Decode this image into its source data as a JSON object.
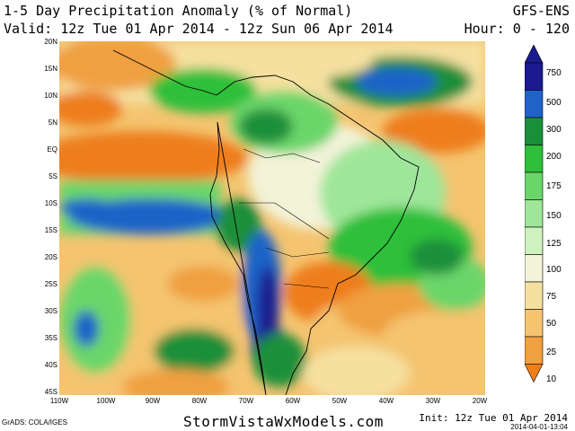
{
  "header": {
    "title": "1-5 Day Precipitation Anomaly (% of Normal)",
    "valid": "Valid: 12z Tue 01 Apr 2014 - 12z Sun 06 Apr 2014",
    "model": "GFS-ENS",
    "hour": "Hour: 0 - 120"
  },
  "map": {
    "lat_labels": [
      "20N",
      "15N",
      "10N",
      "5N",
      "EQ",
      "5S",
      "10S",
      "15S",
      "20S",
      "25S",
      "30S",
      "35S",
      "40S",
      "45S"
    ],
    "lon_labels": [
      "110W",
      "100W",
      "90W",
      "80W",
      "70W",
      "60W",
      "50W",
      "40W",
      "30W",
      "20W"
    ]
  },
  "colorbar": {
    "labels": [
      "750",
      "500",
      "300",
      "200",
      "175",
      "150",
      "125",
      "100",
      "75",
      "50",
      "25",
      "10"
    ],
    "colors": [
      "#1b1b8f",
      "#1f63c8",
      "#1a8f3a",
      "#2fbf3a",
      "#6ad66a",
      "#9fe69a",
      "#cdf2c0",
      "#f3f3d8",
      "#f6e0a0",
      "#f4c470",
      "#f0a040",
      "#ee7e1a"
    ]
  },
  "footer": {
    "grads": "GrADS: COLA/IGES",
    "site": "StormVistaWxModels.com",
    "init": "Init: 12z Tue 01 Apr 2014",
    "stamp": "2014-04-01-13:04"
  }
}
